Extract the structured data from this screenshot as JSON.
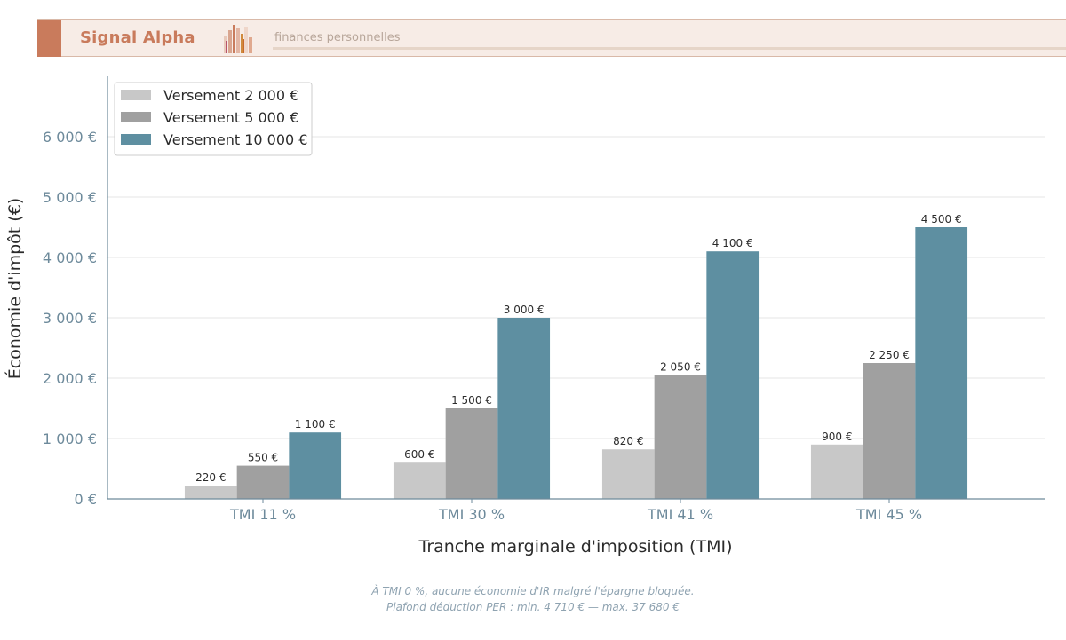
{
  "header": {
    "brand": "Signal Alpha",
    "tagline": "finances personnelles",
    "accent_color": "#c97b5c"
  },
  "chart_data": {
    "type": "bar",
    "categories": [
      "TMI 11 %",
      "TMI 30 %",
      "TMI 41 %",
      "TMI 45 %"
    ],
    "series": [
      {
        "name": "Versement 2 000 €",
        "values": [
          220,
          600,
          820,
          900
        ],
        "labels": [
          "220 €",
          "600 €",
          "820 €",
          "900 €"
        ],
        "color": "#c8c8c8"
      },
      {
        "name": "Versement 5 000 €",
        "values": [
          550,
          1500,
          2050,
          2250
        ],
        "labels": [
          "550 €",
          "1 500 €",
          "2 050 €",
          "2 250 €"
        ],
        "color": "#a0a0a0"
      },
      {
        "name": "Versement 10 000 €",
        "values": [
          1100,
          3000,
          4100,
          4500
        ],
        "labels": [
          "1 100 €",
          "3 000 €",
          "4 100 €",
          "4 500 €"
        ],
        "color": "#5e8fa1"
      }
    ],
    "xlabel": "Tranche marginale d'imposition (TMI)",
    "ylabel": "Économie d'impôt (€)",
    "ylim": [
      0,
      7000
    ],
    "yticks": [
      0,
      1000,
      2000,
      3000,
      4000,
      5000,
      6000
    ],
    "ytick_labels": [
      "0 €",
      "1 000 €",
      "2 000 €",
      "3 000 €",
      "4 000 €",
      "5 000 €",
      "6 000 €"
    ],
    "grid": true,
    "legend_position": "top-left"
  },
  "notes": {
    "line1": "À TMI 0 %, aucune économie d'IR malgré l'épargne bloquée.",
    "line2": "Plafond déduction PER : min. 4 710 € — max. 37 680 €"
  }
}
